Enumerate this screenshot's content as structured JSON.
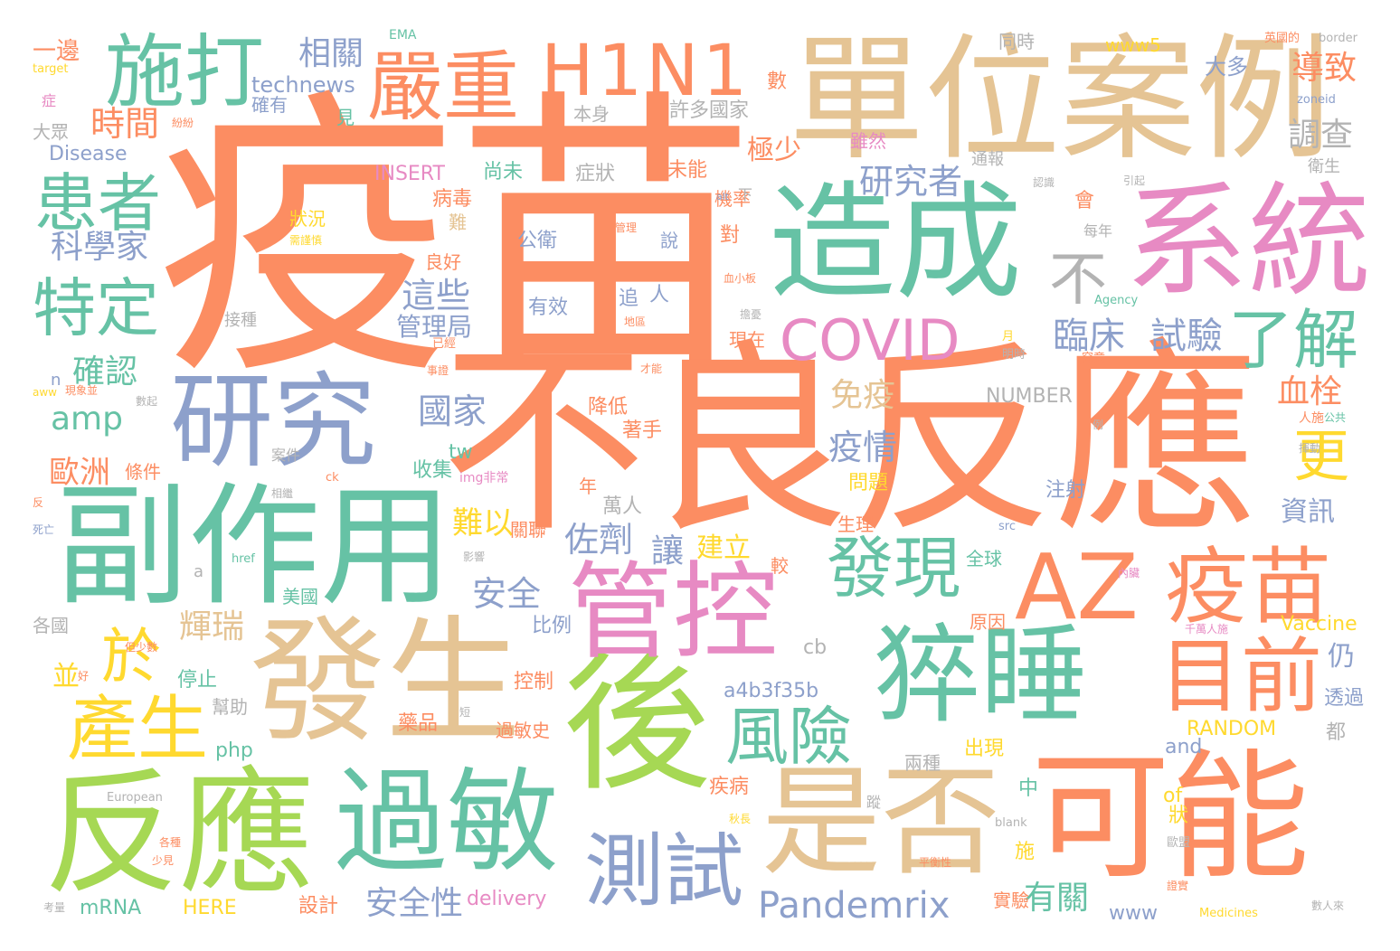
{
  "palette": {
    "orange": "#fc8d62",
    "teal": "#66c2a5",
    "blue": "#8da0cb",
    "pink": "#e78ac3",
    "green": "#a6d854",
    "yellow": "#ffd92f",
    "tan": "#e5c494",
    "gray": "#b3b3b3"
  },
  "words": [
    {
      "text": "疫苗",
      "color": "orange"
    },
    {
      "text": "不良反應",
      "color": "orange"
    },
    {
      "text": "單位案例",
      "color": "tan"
    },
    {
      "text": "系統",
      "color": "pink"
    },
    {
      "text": "造成",
      "color": "teal"
    },
    {
      "text": "副作用",
      "color": "teal"
    },
    {
      "text": "發生",
      "color": "tan"
    },
    {
      "text": "後",
      "color": "green"
    },
    {
      "text": "可能",
      "color": "orange"
    },
    {
      "text": "反應",
      "color": "green"
    },
    {
      "text": "過敏",
      "color": "teal"
    },
    {
      "text": "是否",
      "color": "tan"
    },
    {
      "text": "研究",
      "color": "blue"
    },
    {
      "text": "管控",
      "color": "pink"
    },
    {
      "text": "猝睡",
      "color": "teal"
    },
    {
      "text": "施打",
      "color": "teal"
    },
    {
      "text": "H1N1",
      "color": "orange"
    },
    {
      "text": "嚴重",
      "color": "orange"
    },
    {
      "text": "AZ",
      "color": "orange"
    },
    {
      "text": "疫苗",
      "color": "orange"
    },
    {
      "text": "目前",
      "color": "orange"
    },
    {
      "text": "發現",
      "color": "teal"
    },
    {
      "text": "測試",
      "color": "blue"
    },
    {
      "text": "患者",
      "color": "teal"
    },
    {
      "text": "特定",
      "color": "teal"
    },
    {
      "text": "於",
      "color": "yellow"
    },
    {
      "text": "產生",
      "color": "yellow"
    },
    {
      "text": "COVID",
      "color": "pink"
    },
    {
      "text": "風險",
      "color": "teal"
    },
    {
      "text": "了解",
      "color": "teal"
    },
    {
      "text": "不",
      "color": "gray"
    },
    {
      "text": "Pandemrix",
      "color": "blue"
    },
    {
      "text": "時間",
      "color": "orange"
    },
    {
      "text": "科學家",
      "color": "blue"
    },
    {
      "text": "相關",
      "color": "blue"
    },
    {
      "text": "technews",
      "color": "blue"
    },
    {
      "text": "研究者",
      "color": "blue"
    },
    {
      "text": "臨床",
      "color": "blue"
    },
    {
      "text": "試驗",
      "color": "blue"
    },
    {
      "text": "這些",
      "color": "blue"
    },
    {
      "text": "管理局",
      "color": "blue"
    },
    {
      "text": "國家",
      "color": "blue"
    },
    {
      "text": "確認",
      "color": "teal"
    },
    {
      "text": "amp",
      "color": "teal"
    },
    {
      "text": "歐洲",
      "color": "orange"
    },
    {
      "text": "佐劑",
      "color": "blue"
    },
    {
      "text": "安全",
      "color": "blue"
    },
    {
      "text": "安全性",
      "color": "blue"
    },
    {
      "text": "有關",
      "color": "teal"
    },
    {
      "text": "輝瑞",
      "color": "tan"
    },
    {
      "text": "導致",
      "color": "orange"
    },
    {
      "text": "調查",
      "color": "gray"
    },
    {
      "text": "血栓",
      "color": "orange"
    },
    {
      "text": "更",
      "color": "yellow"
    },
    {
      "text": "免疫",
      "color": "tan"
    },
    {
      "text": "疫情",
      "color": "blue"
    },
    {
      "text": "NUMBER",
      "color": "gray"
    },
    {
      "text": "a4b3f35b",
      "color": "blue"
    },
    {
      "text": "mRNA",
      "color": "teal"
    },
    {
      "text": "delivery",
      "color": "pink"
    },
    {
      "text": "HERE",
      "color": "yellow"
    },
    {
      "text": "Disease",
      "color": "blue"
    },
    {
      "text": "INSERT",
      "color": "pink"
    },
    {
      "text": "RANDOM",
      "color": "yellow"
    },
    {
      "text": "Vaccine",
      "color": "yellow"
    },
    {
      "text": "EMA",
      "color": "teal"
    },
    {
      "text": "www5",
      "color": "yellow"
    },
    {
      "text": "www",
      "color": "blue"
    },
    {
      "text": "php",
      "color": "teal"
    },
    {
      "text": "cb",
      "color": "gray"
    },
    {
      "text": "tw",
      "color": "teal"
    },
    {
      "text": "of",
      "color": "yellow"
    },
    {
      "text": "and",
      "color": "blue"
    },
    {
      "text": "極少",
      "color": "orange"
    },
    {
      "text": "許多國家",
      "color": "gray"
    },
    {
      "text": "本身",
      "color": "gray"
    },
    {
      "text": "尚未",
      "color": "teal"
    },
    {
      "text": "症狀",
      "color": "gray"
    },
    {
      "text": "病毒",
      "color": "orange"
    },
    {
      "text": "未能",
      "color": "orange"
    },
    {
      "text": "公衛",
      "color": "blue"
    },
    {
      "text": "有效",
      "color": "blue"
    },
    {
      "text": "難以",
      "color": "yellow"
    },
    {
      "text": "讓",
      "color": "blue"
    },
    {
      "text": "建立",
      "color": "yellow"
    },
    {
      "text": "降低",
      "color": "orange"
    },
    {
      "text": "著手",
      "color": "orange"
    },
    {
      "text": "收集",
      "color": "teal"
    },
    {
      "text": "萬人",
      "color": "gray"
    },
    {
      "text": "比例",
      "color": "blue"
    },
    {
      "text": "控制",
      "color": "orange"
    },
    {
      "text": "藥品",
      "color": "orange"
    },
    {
      "text": "過敏史",
      "color": "orange"
    },
    {
      "text": "疾病",
      "color": "orange"
    },
    {
      "text": "出現",
      "color": "yellow"
    },
    {
      "text": "兩種",
      "color": "gray"
    },
    {
      "text": "原因",
      "color": "orange"
    },
    {
      "text": "全球",
      "color": "teal"
    },
    {
      "text": "注射",
      "color": "blue"
    },
    {
      "text": "資訊",
      "color": "blue"
    },
    {
      "text": "仍",
      "color": "blue"
    },
    {
      "text": "透過",
      "color": "blue"
    },
    {
      "text": "都",
      "color": "gray"
    },
    {
      "text": "實驗",
      "color": "orange"
    },
    {
      "text": "設計",
      "color": "orange"
    },
    {
      "text": "停止",
      "color": "teal"
    },
    {
      "text": "幫助",
      "color": "gray"
    },
    {
      "text": "並",
      "color": "yellow"
    },
    {
      "text": "美國",
      "color": "teal"
    },
    {
      "text": "各國",
      "color": "gray"
    },
    {
      "text": "條件",
      "color": "orange"
    },
    {
      "text": "大眾",
      "color": "gray"
    },
    {
      "text": "一邊",
      "color": "orange"
    },
    {
      "text": "大多",
      "color": "blue"
    },
    {
      "text": "同時",
      "color": "gray"
    },
    {
      "text": "衛生",
      "color": "gray"
    },
    {
      "text": "問題",
      "color": "yellow"
    },
    {
      "text": "生理",
      "color": "orange"
    },
    {
      "text": "關聯",
      "color": "orange"
    },
    {
      "text": "較",
      "color": "orange"
    },
    {
      "text": "年",
      "color": "orange"
    },
    {
      "text": "中",
      "color": "teal"
    },
    {
      "text": "狀",
      "color": "yellow"
    },
    {
      "text": "施",
      "color": "yellow"
    },
    {
      "text": "數",
      "color": "orange"
    },
    {
      "text": "見",
      "color": "teal"
    },
    {
      "text": "確有",
      "color": "blue"
    },
    {
      "text": "雖然",
      "color": "pink"
    },
    {
      "text": "通報",
      "color": "gray"
    },
    {
      "text": "狀況",
      "color": "yellow"
    },
    {
      "text": "良好",
      "color": "orange"
    },
    {
      "text": "說",
      "color": "blue"
    },
    {
      "text": "對",
      "color": "orange"
    },
    {
      "text": "現在",
      "color": "orange"
    },
    {
      "text": "每年",
      "color": "gray"
    },
    {
      "text": "機率",
      "color": "orange"
    },
    {
      "text": "追",
      "color": "blue"
    },
    {
      "text": "人",
      "color": "blue"
    },
    {
      "text": "會",
      "color": "orange"
    },
    {
      "text": "接種",
      "color": "gray"
    },
    {
      "text": "n",
      "color": "blue"
    },
    {
      "text": "a",
      "color": "gray"
    },
    {
      "text": "症",
      "color": "pink"
    },
    {
      "text": "target",
      "color": "yellow"
    },
    {
      "text": "border",
      "color": "gray"
    },
    {
      "text": "英國的",
      "color": "orange"
    },
    {
      "text": "zoneid",
      "color": "blue"
    },
    {
      "text": "紛紛",
      "color": "orange"
    },
    {
      "text": "認識",
      "color": "gray"
    },
    {
      "text": "引起",
      "color": "gray"
    },
    {
      "text": "alt",
      "color": "blue"
    },
    {
      "text": "下",
      "color": "gray"
    },
    {
      "text": "管理",
      "color": "orange"
    },
    {
      "text": "需謹慎",
      "color": "yellow"
    },
    {
      "text": "血小板",
      "color": "orange"
    },
    {
      "text": "Agency",
      "color": "teal"
    },
    {
      "text": "地區",
      "color": "orange"
    },
    {
      "text": "擔憂",
      "color": "gray"
    },
    {
      "text": "月",
      "color": "yellow"
    },
    {
      "text": "明時",
      "color": "gray"
    },
    {
      "text": "已經",
      "color": "orange"
    },
    {
      "text": "才能",
      "color": "orange"
    },
    {
      "text": "究竟",
      "color": "orange"
    },
    {
      "text": "事證",
      "color": "orange"
    },
    {
      "text": "現象並",
      "color": "orange"
    },
    {
      "text": "aww",
      "color": "yellow"
    },
    {
      "text": "數起",
      "color": "gray"
    },
    {
      "text": "例",
      "color": "gray"
    },
    {
      "text": "公共",
      "color": "teal"
    },
    {
      "text": "人施",
      "color": "orange"
    },
    {
      "text": "揮動",
      "color": "gray"
    },
    {
      "text": "案件",
      "color": "gray"
    },
    {
      "text": "ck",
      "color": "orange"
    },
    {
      "text": "img非常",
      "color": "pink"
    },
    {
      "text": "死亡",
      "color": "blue"
    },
    {
      "text": "反",
      "color": "orange"
    },
    {
      "text": "相繼",
      "color": "gray"
    },
    {
      "text": "影響",
      "color": "gray"
    },
    {
      "text": "href",
      "color": "teal"
    },
    {
      "text": "src",
      "color": "blue"
    },
    {
      "text": "內臟",
      "color": "pink"
    },
    {
      "text": "千萬人施",
      "color": "pink"
    },
    {
      "text": "但少數",
      "color": "orange"
    },
    {
      "text": "好",
      "color": "orange"
    },
    {
      "text": "短",
      "color": "gray"
    },
    {
      "text": "European",
      "color": "gray"
    },
    {
      "text": "秋長",
      "color": "yellow"
    },
    {
      "text": "蹤",
      "color": "gray"
    },
    {
      "text": "blank",
      "color": "gray"
    },
    {
      "text": "歐盟",
      "color": "gray"
    },
    {
      "text": "各種",
      "color": "orange"
    },
    {
      "text": "少見",
      "color": "orange"
    },
    {
      "text": "平衡性",
      "color": "orange"
    },
    {
      "text": "證實",
      "color": "orange"
    },
    {
      "text": "考量",
      "color": "gray"
    },
    {
      "text": "Medicines",
      "color": "yellow"
    },
    {
      "text": "數人來",
      "color": "gray"
    },
    {
      "text": "難",
      "color": "tan"
    }
  ]
}
